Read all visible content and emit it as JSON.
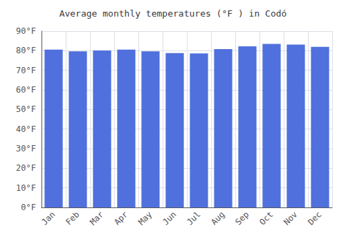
{
  "chart_data": {
    "type": "bar",
    "title": "Average monthly temperatures (°F ) in Codó",
    "categories": [
      "Jan",
      "Feb",
      "Mar",
      "Apr",
      "May",
      "Jun",
      "Jul",
      "Aug",
      "Sep",
      "Oct",
      "Nov",
      "Dec"
    ],
    "values": [
      80.6,
      79.7,
      80.1,
      80.6,
      79.7,
      78.8,
      78.6,
      80.8,
      82.2,
      83.5,
      83.1,
      82.0
    ],
    "ylim": [
      0,
      90
    ],
    "yticks": [
      {
        "value": 0,
        "label": "0°F"
      },
      {
        "value": 10,
        "label": "10°F"
      },
      {
        "value": 20,
        "label": "20°F"
      },
      {
        "value": 30,
        "label": "30°F"
      },
      {
        "value": 40,
        "label": "40°F"
      },
      {
        "value": 50,
        "label": "50°F"
      },
      {
        "value": 60,
        "label": "60°F"
      },
      {
        "value": 70,
        "label": "70°F"
      },
      {
        "value": 80,
        "label": "80°F"
      },
      {
        "value": 90,
        "label": "90°F"
      }
    ],
    "grid": true
  }
}
